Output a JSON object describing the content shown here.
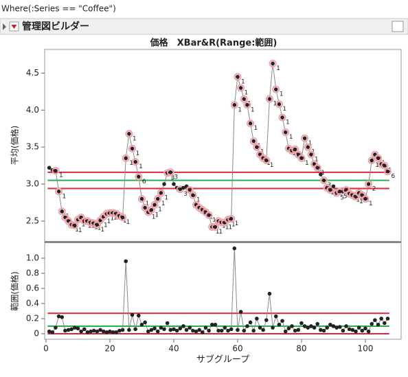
{
  "where": "Where(:Series == \"Coffee\")",
  "panel_title": "管理図ビルダー",
  "chart_data": [
    {
      "type": "line",
      "title": "価格　XBar&R(Range:範囲)",
      "y_label": "平均(価格)",
      "x": [
        1,
        2,
        3,
        4,
        5,
        6,
        7,
        8,
        9,
        10,
        11,
        12,
        13,
        14,
        15,
        16,
        17,
        18,
        19,
        20,
        21,
        22,
        23,
        24,
        25,
        26,
        27,
        28,
        29,
        30,
        31,
        32,
        33,
        34,
        35,
        36,
        37,
        38,
        39,
        40,
        41,
        42,
        43,
        44,
        45,
        46,
        47,
        48,
        49,
        50,
        51,
        52,
        53,
        54,
        55,
        56,
        57,
        58,
        59,
        60,
        61,
        62,
        63,
        64,
        65,
        66,
        67,
        68,
        69,
        70,
        71,
        72,
        73,
        74,
        75,
        76,
        77,
        78,
        79,
        80,
        81,
        82,
        83,
        84,
        85,
        86,
        87,
        88,
        89,
        90,
        91,
        92,
        93,
        94,
        95,
        96,
        97,
        98,
        99,
        100,
        101,
        102,
        103,
        104,
        105,
        106,
        107
      ],
      "values": [
        3.22,
        3.19,
        3.18,
        2.9,
        2.63,
        2.55,
        2.5,
        2.45,
        2.44,
        2.52,
        2.55,
        2.5,
        2.5,
        2.48,
        2.47,
        2.45,
        2.51,
        2.56,
        2.6,
        2.61,
        2.61,
        2.6,
        2.57,
        2.55,
        3.35,
        3.68,
        3.48,
        3.3,
        3.1,
        2.8,
        2.68,
        2.62,
        2.65,
        2.72,
        2.8,
        2.88,
        3.0,
        3.15,
        3.16,
        3.0,
        2.95,
        2.93,
        2.95,
        2.97,
        2.92,
        2.85,
        2.72,
        2.68,
        2.65,
        2.62,
        2.58,
        2.42,
        2.42,
        2.5,
        2.48,
        2.48,
        2.52,
        2.53,
        4.07,
        4.45,
        4.3,
        4.15,
        4.07,
        3.82,
        3.58,
        3.5,
        3.4,
        3.35,
        3.32,
        4.15,
        4.63,
        4.28,
        4.08,
        3.9,
        3.7,
        3.48,
        3.45,
        3.47,
        3.4,
        3.35,
        3.62,
        3.5,
        3.4,
        3.27,
        3.22,
        3.13,
        3.05,
        2.95,
        2.92,
        2.97,
        2.88,
        2.9,
        2.9,
        2.92,
        2.87,
        2.85,
        2.83,
        2.88,
        2.85,
        2.8,
        3.0,
        3.32,
        3.4,
        3.35,
        3.27,
        3.25,
        3.17
      ],
      "flags": [
        null,
        null,
        "1",
        "1",
        "1",
        "1",
        "1",
        "1",
        "1",
        "1",
        "1",
        "1",
        "1",
        "1",
        "1",
        "1",
        "1",
        "1",
        "1",
        "1",
        "1",
        "1",
        "1",
        "1",
        "1",
        "1",
        "1",
        "1",
        "6",
        "1",
        "1",
        "1",
        "1",
        "1",
        "1",
        "1",
        null,
        "3",
        "3",
        null,
        null,
        "3",
        null,
        null,
        "1",
        "1",
        "1",
        "1",
        "1",
        "1",
        "1",
        "1",
        "1",
        "1",
        "1",
        "1",
        "1",
        "1",
        "1",
        "1",
        "1",
        "1",
        "1",
        "1",
        "1",
        "1",
        "1",
        "1",
        "1",
        "1",
        "1",
        "1",
        "1",
        "1",
        "1",
        "1",
        "1",
        "1",
        "1",
        "1",
        "1",
        "1",
        "1",
        "1",
        "1",
        null,
        "3",
        "1",
        "1",
        null,
        "5",
        "5",
        null,
        "5",
        "5",
        "1",
        "1",
        "1",
        "1",
        "1",
        "2",
        "1",
        "1",
        "1",
        "1",
        "1",
        "6"
      ],
      "control_lines": [
        {
          "value": 3.16,
          "color": "#d8283a"
        },
        {
          "value": 3.05,
          "color": "#22b14c"
        },
        {
          "value": 2.94,
          "color": "#d8283a"
        }
      ],
      "color": "#222222",
      "flag_color": "#f2a0a8",
      "xlim": [
        -0.43,
        111.2
      ],
      "ylim": [
        2.23,
        4.82
      ],
      "yticks": [
        2.5,
        {
          "value": 3,
          "label": "3.0"
        },
        3.5,
        {
          "value": 4,
          "label": "4.0"
        },
        4.5
      ]
    },
    {
      "type": "line",
      "y_label": "範囲(価格)",
      "x_label": "サブグループ",
      "x": [
        1,
        2,
        3,
        4,
        5,
        6,
        7,
        8,
        9,
        10,
        11,
        12,
        13,
        14,
        15,
        16,
        17,
        18,
        19,
        20,
        21,
        22,
        23,
        24,
        25,
        26,
        27,
        28,
        29,
        30,
        31,
        32,
        33,
        34,
        35,
        36,
        37,
        38,
        39,
        40,
        41,
        42,
        43,
        44,
        45,
        46,
        47,
        48,
        49,
        50,
        51,
        52,
        53,
        54,
        55,
        56,
        57,
        58,
        59,
        60,
        61,
        62,
        63,
        64,
        65,
        66,
        67,
        68,
        69,
        70,
        71,
        72,
        73,
        74,
        75,
        76,
        77,
        78,
        79,
        80,
        81,
        82,
        83,
        84,
        85,
        86,
        87,
        88,
        89,
        90,
        91,
        92,
        93,
        94,
        95,
        96,
        97,
        98,
        99,
        100,
        101,
        102,
        103,
        104,
        105,
        106,
        107
      ],
      "values": [
        0.03,
        0.02,
        0.08,
        0.23,
        0.22,
        0.04,
        0.05,
        0.06,
        0.08,
        0.07,
        0.03,
        0.06,
        0.02,
        0.03,
        0.04,
        0.03,
        0.05,
        0.03,
        0.02,
        0.03,
        0.02,
        0.02,
        0.04,
        0.05,
        0.96,
        0.05,
        0.25,
        0.06,
        0.24,
        0.12,
        0.15,
        0.03,
        0.05,
        0.07,
        0.03,
        0.08,
        0.06,
        0.14,
        0.05,
        0.06,
        0.04,
        0.07,
        0.1,
        0.05,
        0.08,
        0.04,
        0.03,
        0.05,
        0.02,
        0.08,
        0.04,
        0.12,
        0.12,
        0.04,
        0.04,
        0.08,
        0.04,
        0.06,
        1.13,
        0.05,
        0.29,
        0.04,
        0.1,
        0.15,
        0.04,
        0.2,
        0.08,
        0.05,
        0.18,
        0.53,
        0.08,
        0.23,
        0.12,
        0.17,
        0.03,
        0.07,
        0.1,
        0.04,
        0.05,
        0.14,
        0.1,
        0.08,
        0.1,
        0.08,
        0.13,
        0.05,
        0.04,
        0.08,
        0.12,
        0.1,
        0.08,
        0.09,
        0.04,
        0.1,
        0.06,
        0.05,
        0.03,
        0.08,
        0.04,
        0.07,
        0.03,
        0.13,
        0.18,
        0.12,
        0.2,
        0.14,
        0.2
      ],
      "control_lines": [
        {
          "value": 0.27,
          "color": "#d8283a"
        },
        {
          "value": 0.1,
          "color": "#22b14c"
        },
        {
          "value": 0,
          "color": "#d8283a"
        }
      ],
      "color": "#222222",
      "xlim": [
        -0.43,
        111.2
      ],
      "ylim": [
        -0.073,
        1.2
      ],
      "xticks": [
        0,
        20,
        40,
        60,
        80,
        100
      ],
      "yticks": [
        0,
        0.2,
        0.4,
        0.6,
        0.8,
        {
          "value": 1,
          "label": "1.0"
        }
      ]
    }
  ]
}
